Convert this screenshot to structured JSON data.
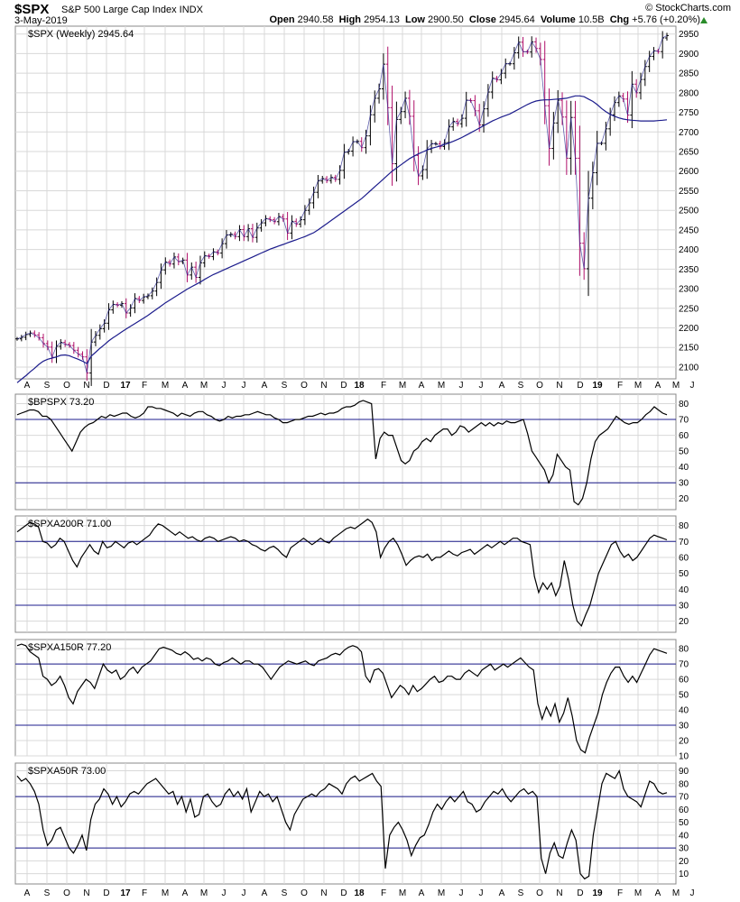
{
  "header": {
    "symbol": "$SPX",
    "name": "S&P 500 Large Cap Index INDX",
    "date": "3-May-2019",
    "brand": "© StockCharts.com",
    "open_label": "Open",
    "open": "2940.58",
    "high_label": "High",
    "high": "2954.13",
    "low_label": "Low",
    "low": "2900.50",
    "close_label": "Close",
    "close": "2945.64",
    "volume_label": "Volume",
    "volume": "10.5B",
    "chg_label": "Chg",
    "chg": "+5.76 (+0.20%)"
  },
  "colors": {
    "price": "#000000",
    "price_down": "#b0106a",
    "ma": "#1c1c8c",
    "grid": "#d8d8d8",
    "refline": "#1c1c8c",
    "border": "#888888",
    "up_arrow": "#2a8c2a"
  },
  "x_labels": [
    "A",
    "S",
    "O",
    "N",
    "D",
    "17",
    "F",
    "M",
    "A",
    "M",
    "J",
    "J",
    "A",
    "S",
    "O",
    "N",
    "D",
    "18",
    "F",
    "M",
    "A",
    "M",
    "J",
    "J",
    "A",
    "S",
    "O",
    "N",
    "D",
    "19",
    "F",
    "M",
    "A",
    "M",
    "J"
  ],
  "chart_data": [
    {
      "type": "line",
      "title": "$SPX (Weekly) 2945.64",
      "ylim": [
        2070,
        2970
      ],
      "yticks": [
        2100,
        2150,
        2200,
        2250,
        2300,
        2350,
        2400,
        2450,
        2500,
        2550,
        2600,
        2650,
        2700,
        2750,
        2800,
        2850,
        2900,
        2950
      ],
      "grid": true,
      "series": [
        {
          "name": "$SPX (Weekly) 2945.64",
          "style": "ohlc",
          "values": [
            2172,
            2176,
            2183,
            2187,
            2182,
            2175,
            2160,
            2151,
            2125,
            2153,
            2163,
            2158,
            2155,
            2143,
            2133,
            2126,
            2085,
            2164,
            2181,
            2198,
            2212,
            2246,
            2260,
            2258,
            2262,
            2238,
            2251,
            2275,
            2270,
            2279,
            2282,
            2294,
            2316,
            2348,
            2368,
            2363,
            2381,
            2369,
            2373,
            2335,
            2355,
            2329,
            2366,
            2384,
            2382,
            2394,
            2391,
            2415,
            2437,
            2439,
            2433,
            2451,
            2433,
            2453,
            2431,
            2455,
            2468,
            2479,
            2476,
            2471,
            2484,
            2478,
            2442,
            2472,
            2465,
            2476,
            2500,
            2519,
            2546,
            2575,
            2581,
            2576,
            2584,
            2579,
            2602,
            2648,
            2651,
            2675,
            2676,
            2660,
            2690,
            2744,
            2786,
            2810,
            2873,
            2762,
            2619,
            2732,
            2752,
            2786,
            2740,
            2640,
            2588,
            2604,
            2656,
            2670,
            2670,
            2663,
            2673,
            2713,
            2727,
            2721,
            2735,
            2781,
            2780,
            2754,
            2718,
            2759,
            2802,
            2837,
            2833,
            2850,
            2874,
            2874,
            2902,
            2929,
            2905,
            2904,
            2930,
            2913,
            2885,
            2767,
            2658,
            2723,
            2781,
            2738,
            2633,
            2737,
            2633,
            2416,
            2351,
            2531,
            2596,
            2671,
            2671,
            2708,
            2744,
            2775,
            2792,
            2784,
            2743,
            2822,
            2800,
            2834,
            2867,
            2893,
            2907,
            2905,
            2940,
            2946
          ]
        },
        {
          "name": "",
          "style": "ma",
          "values": [
            2060,
            2069,
            2078,
            2088,
            2097,
            2107,
            2115,
            2120,
            2123,
            2126,
            2130,
            2131,
            2129,
            2124,
            2120,
            2115,
            2109,
            2128,
            2138,
            2148,
            2157,
            2167,
            2175,
            2182,
            2190,
            2197,
            2204,
            2211,
            2218,
            2225,
            2232,
            2240,
            2248,
            2256,
            2264,
            2271,
            2278,
            2285,
            2292,
            2299,
            2305,
            2311,
            2317,
            2324,
            2330,
            2336,
            2341,
            2346,
            2351,
            2356,
            2361,
            2366,
            2371,
            2376,
            2381,
            2386,
            2391,
            2396,
            2401,
            2405,
            2409,
            2413,
            2417,
            2421,
            2425,
            2429,
            2433,
            2438,
            2443,
            2450,
            2458,
            2466,
            2474,
            2482,
            2490,
            2498,
            2506,
            2514,
            2522,
            2530,
            2540,
            2550,
            2560,
            2570,
            2580,
            2590,
            2600,
            2608,
            2616,
            2624,
            2632,
            2638,
            2644,
            2649,
            2654,
            2658,
            2661,
            2664,
            2668,
            2672,
            2676,
            2681,
            2686,
            2692,
            2698,
            2704,
            2710,
            2716,
            2722,
            2728,
            2733,
            2738,
            2742,
            2746,
            2752,
            2758,
            2764,
            2770,
            2775,
            2779,
            2781,
            2782,
            2782,
            2783,
            2784,
            2785,
            2786,
            2789,
            2792,
            2792,
            2790,
            2784,
            2778,
            2770,
            2760,
            2752,
            2745,
            2740,
            2736,
            2733,
            2731,
            2730,
            2729,
            2728,
            2728,
            2728,
            2728,
            2729,
            2730,
            2731
          ]
        }
      ]
    },
    {
      "type": "line",
      "title": "$BPSPX 73.20",
      "ylim": [
        13,
        86
      ],
      "yticks": [
        20,
        30,
        40,
        50,
        60,
        70,
        80
      ],
      "reflines": [
        70,
        30
      ],
      "grid": true,
      "series": [
        {
          "name": "$BPSPX 73.20",
          "values": [
            73,
            74,
            75,
            76,
            76,
            75,
            72,
            72,
            70,
            66,
            62,
            58,
            54,
            50,
            56,
            62,
            65,
            67,
            68,
            70,
            72,
            71,
            73,
            72,
            73,
            74,
            74,
            72,
            71,
            72,
            74,
            78,
            78,
            77,
            77,
            76,
            75,
            74,
            72,
            74,
            73,
            72,
            74,
            75,
            75,
            73,
            72,
            70,
            69,
            70,
            72,
            71,
            72,
            72,
            73,
            73,
            74,
            75,
            74,
            73,
            73,
            71,
            70,
            68,
            68,
            69,
            70,
            70,
            71,
            72,
            72,
            73,
            74,
            73,
            74,
            74,
            75,
            77,
            78,
            78,
            79,
            81,
            82,
            81,
            80,
            45,
            58,
            62,
            60,
            60,
            52,
            44,
            42,
            44,
            50,
            52,
            56,
            58,
            56,
            60,
            62,
            64,
            64,
            60,
            62,
            66,
            65,
            62,
            64,
            66,
            68,
            66,
            68,
            66,
            68,
            67,
            69,
            68,
            68,
            69,
            70,
            61,
            50,
            46,
            42,
            38,
            30,
            35,
            48,
            44,
            40,
            38,
            18,
            16,
            20,
            30,
            45,
            56,
            60,
            62,
            64,
            68,
            72,
            70,
            68,
            67,
            68,
            68,
            70,
            73,
            75,
            78,
            76,
            74,
            73
          ]
        }
      ]
    },
    {
      "type": "line",
      "title": "$SPXA200R 71.00",
      "ylim": [
        13,
        86
      ],
      "yticks": [
        20,
        30,
        40,
        50,
        60,
        70,
        80
      ],
      "reflines": [
        70,
        30
      ],
      "grid": true,
      "series": [
        {
          "name": "$SPXA200R 71.00",
          "values": [
            76,
            78,
            80,
            82,
            81,
            79,
            70,
            69,
            66,
            68,
            72,
            70,
            64,
            58,
            54,
            60,
            64,
            68,
            64,
            62,
            70,
            66,
            67,
            70,
            68,
            66,
            69,
            70,
            68,
            70,
            72,
            74,
            78,
            81,
            80,
            78,
            76,
            74,
            76,
            74,
            72,
            73,
            71,
            70,
            72,
            73,
            72,
            70,
            71,
            72,
            73,
            72,
            70,
            71,
            70,
            68,
            67,
            65,
            64,
            66,
            67,
            65,
            62,
            60,
            66,
            68,
            70,
            72,
            70,
            68,
            70,
            72,
            70,
            69,
            72,
            74,
            76,
            78,
            79,
            78,
            80,
            82,
            84,
            82,
            76,
            60,
            66,
            70,
            72,
            68,
            62,
            55,
            58,
            60,
            61,
            60,
            62,
            58,
            60,
            60,
            62,
            64,
            62,
            61,
            63,
            64,
            65,
            62,
            64,
            66,
            68,
            66,
            68,
            70,
            68,
            70,
            72,
            72,
            70,
            69,
            68,
            48,
            38,
            44,
            40,
            44,
            36,
            42,
            58,
            46,
            30,
            20,
            17,
            24,
            30,
            40,
            50,
            56,
            62,
            68,
            70,
            64,
            60,
            62,
            58,
            60,
            64,
            68,
            72,
            74,
            73,
            72,
            71
          ]
        }
      ]
    },
    {
      "type": "line",
      "title": "$SPXA150R 77.20",
      "ylim": [
        10,
        86
      ],
      "yticks": [
        10,
        20,
        30,
        40,
        50,
        60,
        70,
        80
      ],
      "reflines": [
        70,
        30
      ],
      "grid": true,
      "series": [
        {
          "name": "$SPXA150R 77.20",
          "values": [
            82,
            83,
            82,
            78,
            76,
            74,
            62,
            60,
            56,
            58,
            62,
            56,
            48,
            44,
            52,
            56,
            60,
            58,
            54,
            62,
            70,
            66,
            64,
            66,
            60,
            62,
            66,
            68,
            64,
            68,
            70,
            72,
            76,
            80,
            81,
            80,
            79,
            77,
            76,
            78,
            76,
            73,
            74,
            72,
            74,
            73,
            70,
            69,
            71,
            72,
            74,
            72,
            70,
            72,
            72,
            70,
            70,
            68,
            64,
            60,
            64,
            68,
            70,
            72,
            71,
            70,
            71,
            72,
            70,
            69,
            72,
            73,
            74,
            76,
            77,
            76,
            79,
            81,
            82,
            81,
            78,
            62,
            58,
            66,
            67,
            64,
            56,
            48,
            52,
            56,
            54,
            50,
            56,
            52,
            54,
            57,
            60,
            62,
            58,
            59,
            62,
            62,
            60,
            60,
            64,
            66,
            64,
            62,
            66,
            68,
            70,
            66,
            68,
            70,
            68,
            70,
            72,
            74,
            71,
            68,
            66,
            44,
            34,
            42,
            36,
            44,
            32,
            38,
            48,
            36,
            20,
            14,
            12,
            22,
            30,
            38,
            50,
            58,
            64,
            68,
            68,
            62,
            58,
            62,
            58,
            64,
            70,
            76,
            80,
            79,
            78,
            77
          ]
        }
      ]
    },
    {
      "type": "line",
      "title": "$SPXA50R 73.00",
      "ylim": [
        2,
        96
      ],
      "yticks": [
        10,
        20,
        30,
        40,
        50,
        60,
        70,
        80,
        90
      ],
      "reflines": [
        70,
        30
      ],
      "grid": true,
      "series": [
        {
          "name": "$SPXA50R 73.00",
          "values": [
            86,
            82,
            84,
            80,
            74,
            64,
            44,
            32,
            36,
            44,
            46,
            38,
            30,
            26,
            32,
            40,
            28,
            52,
            64,
            68,
            76,
            72,
            64,
            70,
            62,
            66,
            72,
            74,
            72,
            76,
            80,
            82,
            84,
            80,
            76,
            72,
            74,
            64,
            70,
            58,
            68,
            54,
            56,
            70,
            72,
            66,
            62,
            64,
            72,
            76,
            70,
            74,
            68,
            76,
            58,
            66,
            74,
            70,
            72,
            66,
            70,
            60,
            50,
            44,
            56,
            62,
            68,
            70,
            72,
            70,
            74,
            76,
            80,
            78,
            76,
            72,
            80,
            84,
            86,
            82,
            84,
            86,
            88,
            82,
            78,
            14,
            40,
            46,
            50,
            44,
            36,
            24,
            32,
            38,
            40,
            48,
            58,
            64,
            60,
            66,
            70,
            66,
            70,
            74,
            66,
            64,
            58,
            60,
            66,
            70,
            74,
            72,
            76,
            70,
            66,
            70,
            74,
            76,
            72,
            74,
            70,
            22,
            10,
            26,
            34,
            24,
            22,
            34,
            44,
            36,
            10,
            6,
            8,
            40,
            60,
            80,
            88,
            86,
            84,
            90,
            76,
            70,
            68,
            66,
            62,
            72,
            82,
            80,
            74,
            72,
            73
          ]
        }
      ]
    }
  ]
}
